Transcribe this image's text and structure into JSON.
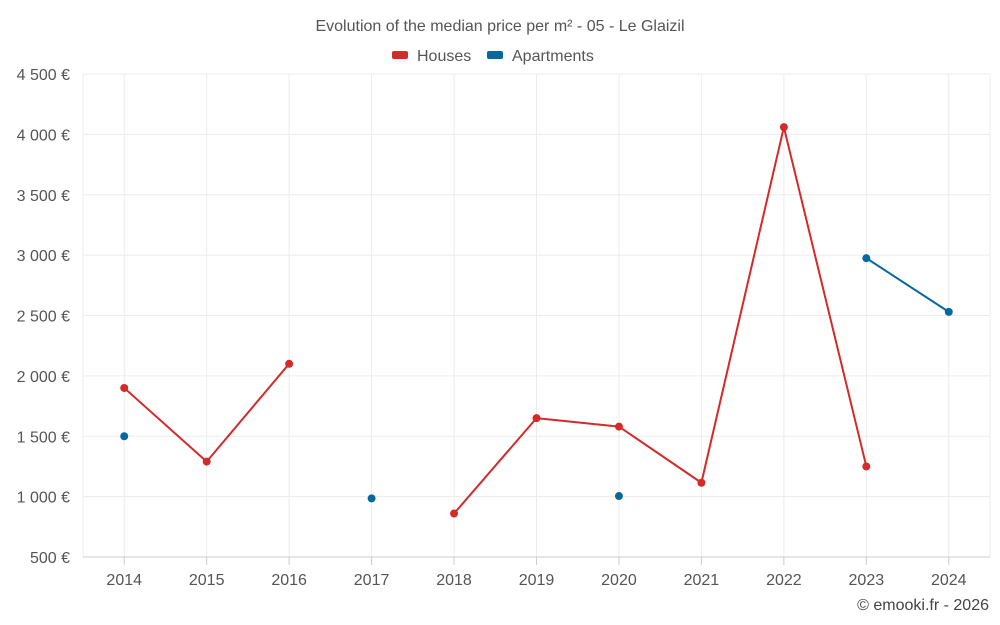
{
  "chart_data": {
    "type": "line",
    "title": "Evolution of the median price per m² - 05 - Le Glaizil",
    "categories": [
      "2014",
      "2015",
      "2016",
      "2017",
      "2018",
      "2019",
      "2020",
      "2021",
      "2022",
      "2023",
      "2024"
    ],
    "series": [
      {
        "name": "Houses",
        "color": "#d32a2a",
        "values": [
          1900,
          1290,
          2100,
          null,
          860,
          1650,
          1580,
          1115,
          4060,
          1250,
          null
        ]
      },
      {
        "name": "Apartments",
        "color": "#06699e",
        "values": [
          1500,
          null,
          null,
          985,
          null,
          null,
          1005,
          null,
          null,
          2975,
          2530
        ]
      }
    ],
    "ylim": [
      500,
      4500
    ],
    "yticks": [
      500,
      1000,
      1500,
      2000,
      2500,
      3000,
      3500,
      4000,
      4500
    ],
    "ytick_labels": [
      "500 €",
      "1 000 €",
      "1 500 €",
      "2 000 €",
      "2 500 €",
      "3 000 €",
      "3 500 €",
      "4 000 €",
      "4 500 €"
    ],
    "xlabel": "",
    "ylabel": "",
    "grid": true,
    "legend_position": "top-center"
  },
  "credit": "© emooki.fr - 2026"
}
